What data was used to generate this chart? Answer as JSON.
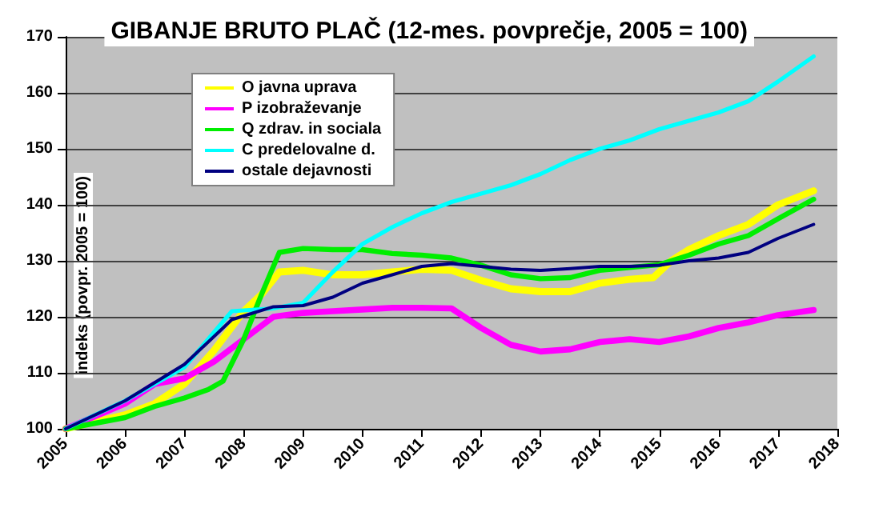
{
  "chart_data": {
    "type": "line",
    "title": "GIBANJE BRUTO PLAČ (12-mes. povprečje, 2005 = 100)",
    "ylabel": "indeks (povpr. 2005 = 100)",
    "xlim": [
      2005,
      2018
    ],
    "xticks": [
      2005,
      2006,
      2007,
      2008,
      2009,
      2010,
      2011,
      2012,
      2013,
      2014,
      2015,
      2016,
      2017,
      2018
    ],
    "ylim": [
      100,
      170
    ],
    "yticks": [
      100,
      110,
      120,
      130,
      140,
      150,
      160,
      170
    ],
    "grid": "y",
    "legend": "top left",
    "marker": "none",
    "line_style": "solid",
    "series": [
      {
        "name": "O javna uprava",
        "color": "#ffff00",
        "x": [
          2005,
          2006,
          2006.5,
          2007,
          2007.5,
          2008,
          2008.3,
          2008.6,
          2009,
          2009.5,
          2010,
          2010.5,
          2011,
          2011.5,
          2012,
          2012.5,
          2013,
          2013.5,
          2014,
          2014.5,
          2014.9,
          2015.2,
          2015.5,
          2016,
          2016.5,
          2017,
          2017.6
        ],
        "values": [
          100,
          102.5,
          104.5,
          108,
          114,
          121,
          124,
          128,
          128.3,
          127.5,
          127.5,
          128,
          128.5,
          128.3,
          126.5,
          125,
          124.5,
          124.5,
          126,
          126.7,
          127,
          130,
          132,
          134.5,
          136.5,
          140,
          142.5
        ]
      },
      {
        "name": "P izobraževanje",
        "color": "#ff00ff",
        "x": [
          2005,
          2006,
          2006.5,
          2007,
          2007.5,
          2008,
          2008.5,
          2009,
          2009.5,
          2010,
          2010.5,
          2011,
          2011.5,
          2012,
          2012.5,
          2013,
          2013.5,
          2014,
          2014.5,
          2015,
          2015.5,
          2016,
          2016.5,
          2017,
          2017.6
        ],
        "values": [
          100,
          104.5,
          108,
          109,
          112,
          116,
          120,
          120.7,
          121,
          121.3,
          121.6,
          121.6,
          121.5,
          118,
          115,
          113.8,
          114.2,
          115.5,
          116,
          115.5,
          116.5,
          118,
          119,
          120.3,
          121.2
        ]
      },
      {
        "name": "Q zdrav. in sociala",
        "color": "#00ee00",
        "x": [
          2005,
          2006,
          2006.5,
          2007,
          2007.4,
          2007.65,
          2008,
          2008.3,
          2008.6,
          2009,
          2009.5,
          2010,
          2010.5,
          2011,
          2011.5,
          2012,
          2012.5,
          2013,
          2013.5,
          2014,
          2014.5,
          2015,
          2015.5,
          2016,
          2016.5,
          2017,
          2017.6
        ],
        "values": [
          100,
          102,
          104,
          105.5,
          107,
          108.5,
          116,
          124,
          131.5,
          132.2,
          132,
          132,
          131.3,
          131,
          130.5,
          129.2,
          127.5,
          126.8,
          127,
          128.3,
          128.8,
          129.3,
          131,
          133,
          134.5,
          137.5,
          141
        ]
      },
      {
        "name": "C predelovalne d.",
        "color": "#00ffff",
        "x": [
          2005,
          2006,
          2007,
          2007.8,
          2008.5,
          2009,
          2009.5,
          2010,
          2010.5,
          2011,
          2011.5,
          2012,
          2012.5,
          2013,
          2013.5,
          2014,
          2014.5,
          2015,
          2015.5,
          2016,
          2016.5,
          2017,
          2017.6
        ],
        "values": [
          100,
          105,
          111,
          121,
          121.5,
          122.5,
          128,
          133,
          136,
          138.5,
          140.5,
          142,
          143.5,
          145.5,
          148,
          150,
          151.5,
          153.5,
          155,
          156.5,
          158.5,
          162,
          166.5
        ]
      },
      {
        "name": "ostale dejavnosti",
        "color": "#000080",
        "x": [
          2005,
          2006,
          2007,
          2007.8,
          2008.5,
          2009,
          2009.5,
          2010,
          2010.5,
          2011,
          2011.5,
          2012,
          2012.5,
          2013,
          2013.5,
          2014,
          2014.5,
          2015,
          2015.5,
          2016,
          2016.5,
          2017,
          2017.6
        ],
        "values": [
          100,
          105,
          111.5,
          119.5,
          121.8,
          122,
          123.5,
          126,
          127.5,
          129,
          129.5,
          129,
          128.5,
          128.3,
          128.6,
          129,
          129,
          129.2,
          130,
          130.5,
          131.5,
          134,
          136.5
        ]
      }
    ]
  }
}
